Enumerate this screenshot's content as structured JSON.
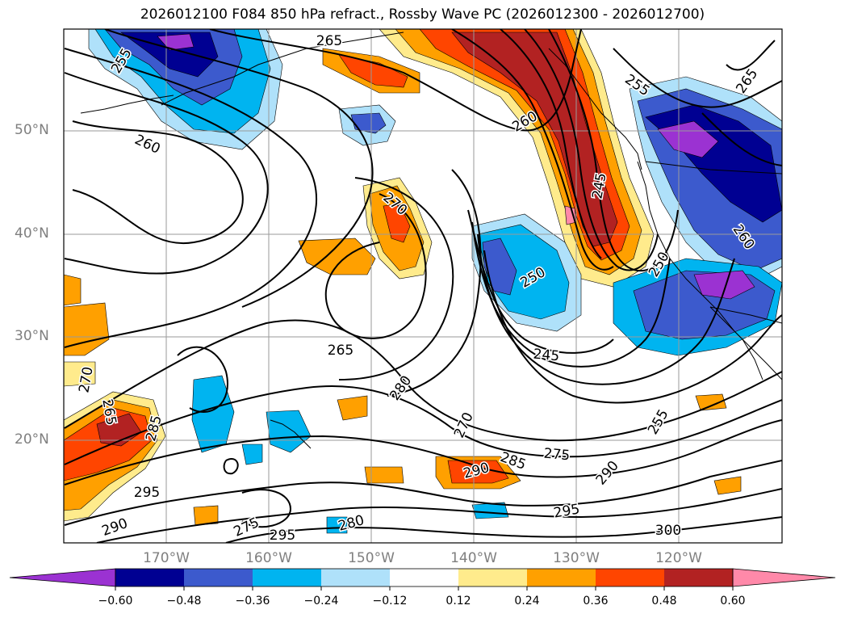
{
  "title": "2026012100 F084 850 hPa refract., Rossby Wave PC (2026012300 - 2026012700)",
  "lat_labels": [
    "50°N",
    "40°N",
    "30°N",
    "20°N"
  ],
  "lon_labels": [
    "170°W",
    "160°W",
    "150°W",
    "140°W",
    "130°W",
    "120°W"
  ],
  "colorbar": {
    "ticks": [
      "−0.60",
      "−0.48",
      "−0.36",
      "−0.24",
      "−0.12",
      "0.12",
      "0.24",
      "0.36",
      "0.48",
      "0.60"
    ],
    "colors": [
      "#9b32d2",
      "#000092",
      "#3c5acd",
      "#00b4f0",
      "#afe1fa",
      "#ffffff",
      "#ffeb8c",
      "#ffa000",
      "#ff4500",
      "#b22222",
      "#ff89a9"
    ]
  },
  "contour_labels": [
    {
      "text": "265"
    },
    {
      "text": "255"
    },
    {
      "text": "260"
    },
    {
      "text": "260"
    },
    {
      "text": "245"
    },
    {
      "text": "255"
    },
    {
      "text": "265"
    },
    {
      "text": "260"
    },
    {
      "text": "270"
    },
    {
      "text": "250"
    },
    {
      "text": "250"
    },
    {
      "text": "245"
    },
    {
      "text": "265"
    },
    {
      "text": "270"
    },
    {
      "text": "280"
    },
    {
      "text": "270"
    },
    {
      "text": "255"
    },
    {
      "text": "275"
    },
    {
      "text": "285"
    },
    {
      "text": "285"
    },
    {
      "text": "290"
    },
    {
      "text": "290"
    },
    {
      "text": "295"
    },
    {
      "text": "295"
    },
    {
      "text": "300"
    },
    {
      "text": "290"
    },
    {
      "text": "280"
    },
    {
      "text": "275"
    },
    {
      "text": "295"
    },
    {
      "text": "265"
    }
  ],
  "map_style": {
    "frame": "#000000",
    "grid": "#9a9a9a",
    "contour": "#000000",
    "coast": "#000000"
  }
}
